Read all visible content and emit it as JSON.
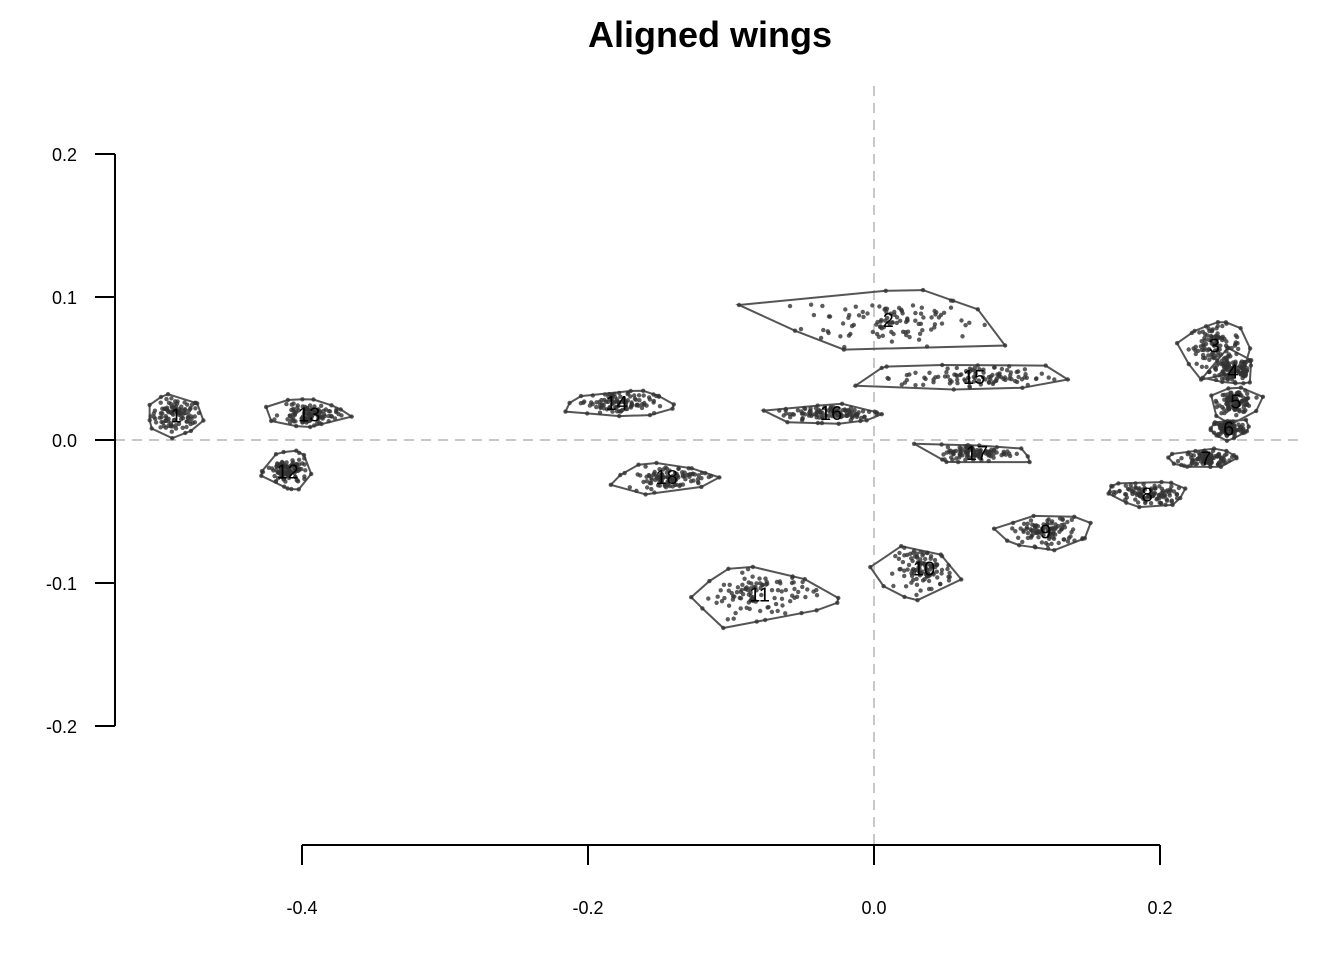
{
  "chart_data": {
    "type": "scatter",
    "title": "Aligned wings",
    "xlabel": "",
    "ylabel": "",
    "xlim": [
      -0.53,
      0.3
    ],
    "ylim": [
      -0.29,
      0.25
    ],
    "x_ticks": [
      -0.4,
      -0.2,
      0.0,
      0.2
    ],
    "x_tick_labels": [
      "-0.4",
      "-0.2",
      "0.0",
      "0.2"
    ],
    "y_ticks": [
      -0.2,
      -0.1,
      0.0,
      0.1,
      0.2
    ],
    "y_tick_labels": [
      "-0.2",
      "-0.1",
      "0.0",
      "0.1",
      "0.2"
    ],
    "reference_lines": {
      "h": 0.0,
      "v": 0.0,
      "style": "dashed",
      "color": "#c8c8c8"
    },
    "point_color": "#333333",
    "hull_color": "#555555",
    "landmarks": [
      {
        "label": "1",
        "cx": -0.488,
        "cy": 0.017,
        "sx": 0.009,
        "sy": 0.006
      },
      {
        "label": "2",
        "cx": 0.01,
        "cy": 0.084,
        "sx": 0.03,
        "sy": 0.009
      },
      {
        "label": "3",
        "cx": 0.238,
        "cy": 0.066,
        "sx": 0.009,
        "sy": 0.007
      },
      {
        "label": "4",
        "cx": 0.251,
        "cy": 0.048,
        "sx": 0.008,
        "sy": 0.005
      },
      {
        "label": "5",
        "cx": 0.253,
        "cy": 0.027,
        "sx": 0.006,
        "sy": 0.004
      },
      {
        "label": "6",
        "cx": 0.248,
        "cy": 0.008,
        "sx": 0.006,
        "sy": 0.003
      },
      {
        "label": "7",
        "cx": 0.232,
        "cy": -0.013,
        "sx": 0.009,
        "sy": 0.003
      },
      {
        "label": "8",
        "cx": 0.191,
        "cy": -0.038,
        "sx": 0.012,
        "sy": 0.004
      },
      {
        "label": "9",
        "cx": 0.12,
        "cy": -0.064,
        "sx": 0.012,
        "sy": 0.005
      },
      {
        "label": "10",
        "cx": 0.035,
        "cy": -0.09,
        "sx": 0.01,
        "sy": 0.007
      },
      {
        "label": "11",
        "cx": -0.08,
        "cy": -0.108,
        "sx": 0.02,
        "sy": 0.008
      },
      {
        "label": "12",
        "cx": -0.41,
        "cy": -0.022,
        "sx": 0.007,
        "sy": 0.005
      },
      {
        "label": "13",
        "cx": -0.395,
        "cy": 0.018,
        "sx": 0.01,
        "sy": 0.004
      },
      {
        "label": "14",
        "cx": -0.18,
        "cy": 0.026,
        "sx": 0.014,
        "sy": 0.004
      },
      {
        "label": "15",
        "cx": 0.07,
        "cy": 0.044,
        "sx": 0.025,
        "sy": 0.004
      },
      {
        "label": "16",
        "cx": -0.03,
        "cy": 0.019,
        "sx": 0.018,
        "sy": 0.003
      },
      {
        "label": "17",
        "cx": 0.072,
        "cy": -0.009,
        "sx": 0.013,
        "sy": 0.003
      },
      {
        "label": "18",
        "cx": -0.145,
        "cy": -0.026,
        "sx": 0.014,
        "sy": 0.004
      }
    ]
  }
}
